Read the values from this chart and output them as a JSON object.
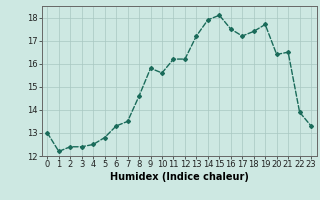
{
  "x": [
    0,
    1,
    2,
    3,
    4,
    5,
    6,
    7,
    8,
    9,
    10,
    11,
    12,
    13,
    14,
    15,
    16,
    17,
    18,
    19,
    20,
    21,
    22,
    23
  ],
  "y": [
    13.0,
    12.2,
    12.4,
    12.4,
    12.5,
    12.8,
    13.3,
    13.5,
    14.6,
    15.8,
    15.6,
    16.2,
    16.2,
    17.2,
    17.9,
    18.1,
    17.5,
    17.2,
    17.4,
    17.7,
    16.4,
    16.5,
    13.9,
    13.3
  ],
  "xlabel": "Humidex (Indice chaleur)",
  "xlim": [
    -0.5,
    23.5
  ],
  "ylim": [
    12,
    18.5
  ],
  "yticks": [
    12,
    13,
    14,
    15,
    16,
    17,
    18
  ],
  "xticks": [
    0,
    1,
    2,
    3,
    4,
    5,
    6,
    7,
    8,
    9,
    10,
    11,
    12,
    13,
    14,
    15,
    16,
    17,
    18,
    19,
    20,
    21,
    22,
    23
  ],
  "line_color": "#1a6b5a",
  "marker": "D",
  "marker_size": 2.0,
  "line_width": 1.0,
  "bg_color": "#cde8e2",
  "grid_color_major": "#a8c8c2",
  "grid_color_minor": "#b8d8d2",
  "label_fontsize": 7.0,
  "tick_fontsize": 6.0
}
